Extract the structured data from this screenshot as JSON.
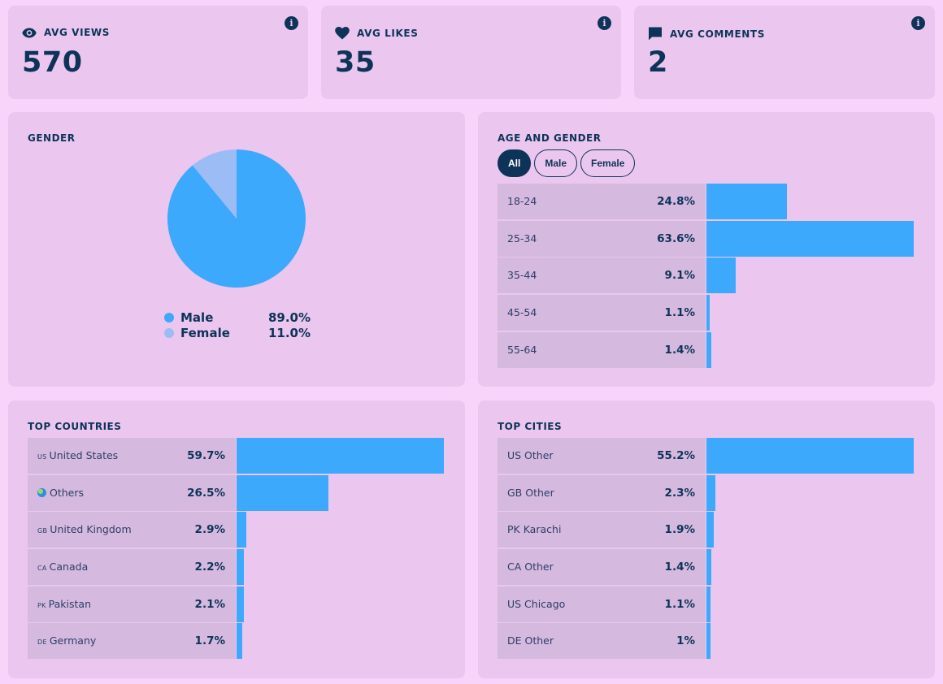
{
  "colors": {
    "bar": "#3da9fc",
    "male": "#3da9fc",
    "female": "#9bbcf5",
    "text": "#0d3358"
  },
  "kpis": [
    {
      "label": "AVG VIEWS",
      "value": "570",
      "icon": "eye-icon"
    },
    {
      "label": "AVG LIKES",
      "value": "35",
      "icon": "heart-icon"
    },
    {
      "label": "AVG COMMENTS",
      "value": "2",
      "icon": "comment-icon"
    }
  ],
  "info_glyph": "i",
  "gender": {
    "title": "GENDER",
    "chart_data": {
      "type": "pie",
      "title": "GENDER",
      "labels": [
        "Male",
        "Female"
      ],
      "values": [
        89.0,
        11.0
      ],
      "display": [
        "89.0%",
        "11.0%"
      ]
    }
  },
  "age_gender": {
    "title": "AGE AND GENDER",
    "filters": [
      "All",
      "Male",
      "Female"
    ],
    "active_filter": "All",
    "max_value": 63.6,
    "rows": [
      {
        "label": "18-24",
        "value": 24.8,
        "display": "24.8%"
      },
      {
        "label": "25-34",
        "value": 63.6,
        "display": "63.6%"
      },
      {
        "label": "35-44",
        "value": 9.1,
        "display": "9.1%"
      },
      {
        "label": "45-54",
        "value": 1.1,
        "display": "1.1%"
      },
      {
        "label": "55-64",
        "value": 1.4,
        "display": "1.4%"
      }
    ]
  },
  "countries": {
    "title": "TOP COUNTRIES",
    "max_value": 59.7,
    "rows": [
      {
        "code": "US",
        "name": "United States",
        "value": 59.7,
        "display": "59.7%"
      },
      {
        "code": "",
        "name": "Others",
        "value": 26.5,
        "display": "26.5%",
        "globe": true
      },
      {
        "code": "GB",
        "name": "United Kingdom",
        "value": 2.9,
        "display": "2.9%"
      },
      {
        "code": "CA",
        "name": "Canada",
        "value": 2.2,
        "display": "2.2%"
      },
      {
        "code": "PK",
        "name": "Pakistan",
        "value": 2.1,
        "display": "2.1%"
      },
      {
        "code": "DE",
        "name": "Germany",
        "value": 1.7,
        "display": "1.7%"
      }
    ]
  },
  "cities": {
    "title": "TOP CITIES",
    "max_value": 55.2,
    "rows": [
      {
        "name": "US Other",
        "value": 55.2,
        "display": "55.2%"
      },
      {
        "name": "GB Other",
        "value": 2.3,
        "display": "2.3%"
      },
      {
        "name": "PK Karachi",
        "value": 1.9,
        "display": "1.9%"
      },
      {
        "name": "CA Other",
        "value": 1.4,
        "display": "1.4%"
      },
      {
        "name": "US Chicago",
        "value": 1.1,
        "display": "1.1%"
      },
      {
        "name": "DE Other",
        "value": 1,
        "display": "1%"
      }
    ]
  }
}
